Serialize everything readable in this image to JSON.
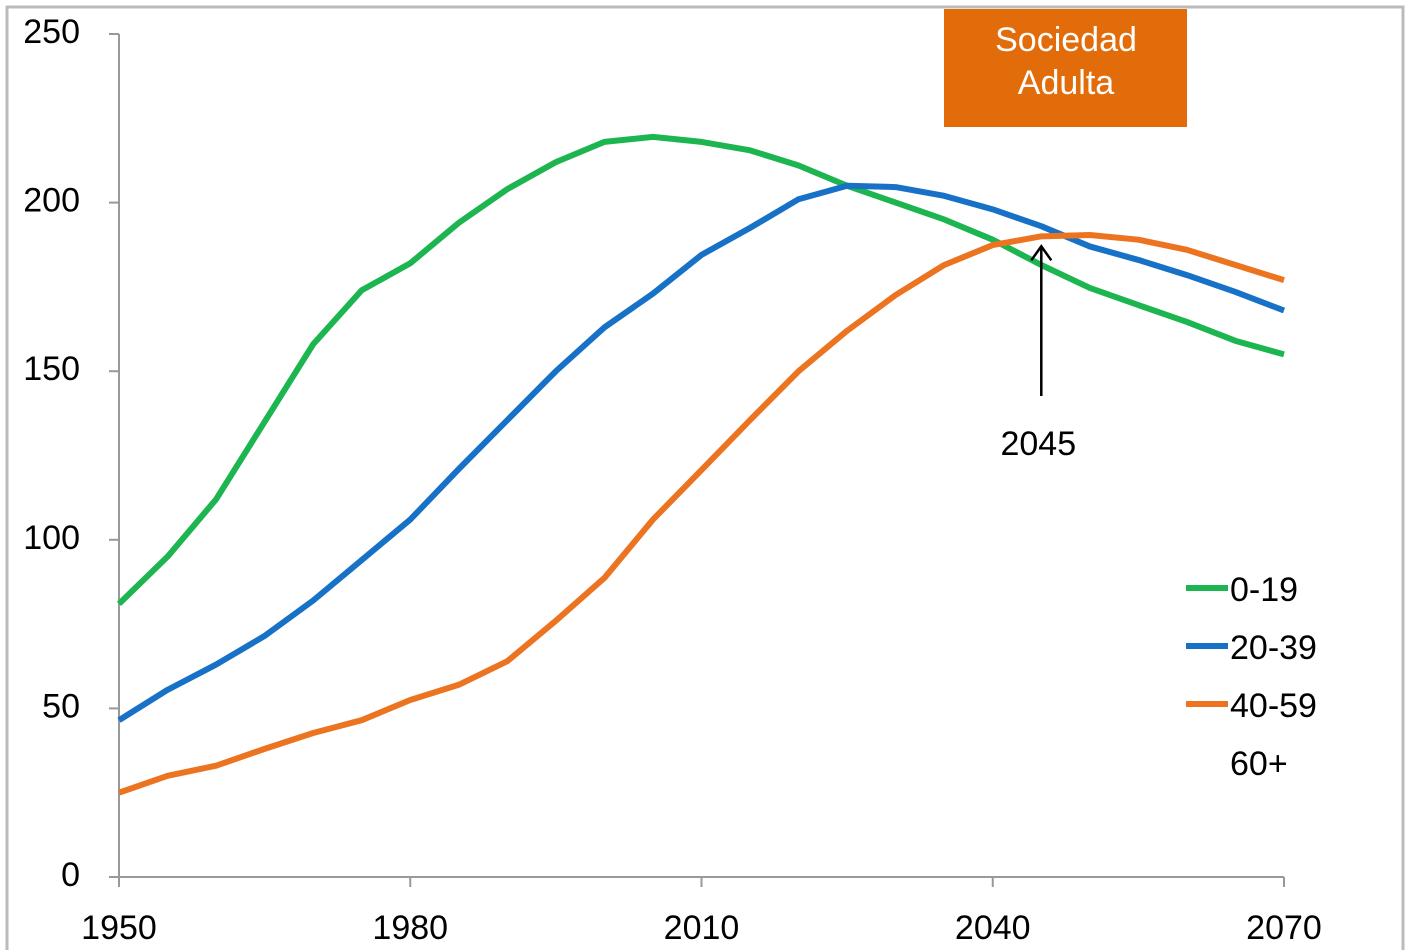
{
  "chart_data": {
    "type": "line",
    "x": [
      1950,
      1955,
      1960,
      1965,
      1970,
      1975,
      1980,
      1985,
      1990,
      1995,
      2000,
      2005,
      2010,
      2015,
      2020,
      2025,
      2030,
      2035,
      2040,
      2045,
      2050,
      2055,
      2060,
      2065,
      2070
    ],
    "series": [
      {
        "name": "0-19",
        "color": "#1db550",
        "values": [
          81,
          95,
          112,
          135,
          158,
          174,
          182,
          194,
          204,
          212,
          218,
          219.5,
          218,
          215.5,
          211,
          205,
          200,
          195,
          189,
          181.5,
          174.7,
          169.6,
          164.6,
          159,
          155
        ]
      },
      {
        "name": "20-39",
        "color": "#1771c6",
        "values": [
          46.5,
          55.5,
          63,
          71.5,
          82,
          94,
          106,
          121,
          135.5,
          150,
          163,
          173,
          184.5,
          192.5,
          201,
          205,
          204.6,
          202,
          198,
          193,
          187,
          183,
          178.5,
          173.5,
          168
        ]
      },
      {
        "name": "40-59",
        "color": "#ec7420",
        "values": [
          25,
          30,
          33,
          38,
          42.7,
          46.5,
          52.5,
          57,
          64,
          76,
          88.7,
          106,
          120.7,
          135.5,
          150,
          162,
          172.6,
          181.5,
          187.4,
          190,
          190.4,
          189,
          186,
          181.5,
          177
        ]
      },
      {
        "name": "60+",
        "color": "#ffffff",
        "values": [
          null,
          null,
          null,
          null,
          null,
          null,
          null,
          null,
          null,
          null,
          null,
          null,
          null,
          null,
          null,
          null,
          null,
          null,
          null,
          null,
          null,
          null,
          null,
          null,
          null
        ]
      }
    ],
    "xlim": [
      1950,
      2070
    ],
    "xticks": [
      1950,
      1980,
      2010,
      2040,
      2070
    ],
    "ylim": [
      0,
      250
    ],
    "yticks": [
      0,
      50,
      100,
      150,
      200,
      250
    ],
    "grid": false,
    "legend": "right",
    "annotations": [
      {
        "lines": [
          "Sociedad",
          "Adulta"
        ],
        "color": "#e36c0a"
      },
      {
        "text": "2045",
        "x": 2045,
        "y": 190
      }
    ]
  }
}
